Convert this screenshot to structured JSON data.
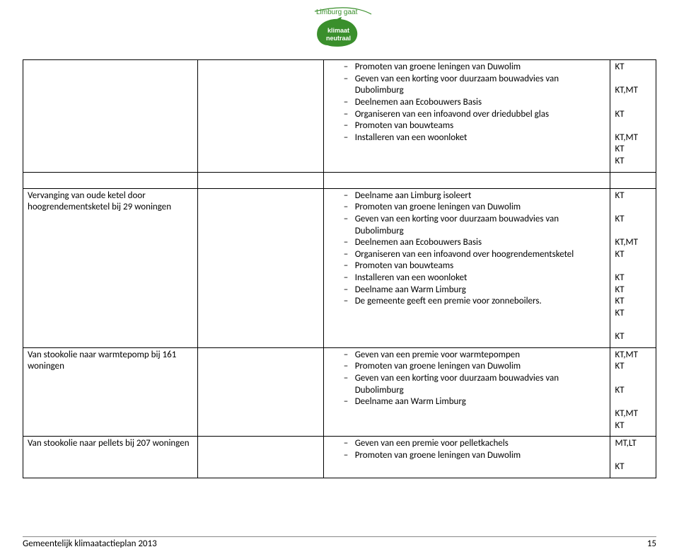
{
  "logo": {
    "line1": "Limburg gaat",
    "line2": "klimaat",
    "line3": "neutraal",
    "leaf_color": "#3a8f2c",
    "text_color": "#3a8f2c"
  },
  "columns": [
    "c0",
    "c1",
    "c2",
    "c3"
  ],
  "rows": [
    {
      "col0_text": "",
      "col1_text": "",
      "col2_items": [
        {
          "text": "Promoten van groene leningen van Duwolim",
          "lines": 2
        },
        {
          "text": "Geven van een korting voor duurzaam bouwadvies van Dubolimburg",
          "lines": 2
        },
        {
          "text": "Deelnemen aan Ecobouwers Basis",
          "lines": 1
        },
        {
          "text": "Organiseren van een infoavond over driedubbel glas",
          "lines": 2
        },
        {
          "text": "Promoten van bouwteams",
          "lines": 1
        },
        {
          "text": "Installeren van een woonloket",
          "lines": 1
        }
      ],
      "codes": [
        "KT",
        "",
        "KT,MT",
        "",
        "KT",
        "",
        "KT,MT",
        "KT",
        "KT"
      ]
    },
    {
      "spacer": true,
      "col0_text": "",
      "col1_text": "",
      "col2_items": [],
      "codes": []
    },
    {
      "col0_text": "Vervanging van oude ketel door hoogrendementsketel bij 29 woningen",
      "col1_text": "",
      "col2_items": [
        {
          "text": "Deelname aan Limburg isoleert",
          "lines": 1
        },
        {
          "text": "Promoten van groene leningen van Duwolim",
          "lines": 2
        },
        {
          "text": "Geven van een korting voor duurzaam bouwadvies van Dubolimburg",
          "lines": 2
        },
        {
          "text": "Deelnemen aan Ecobouwers Basis",
          "lines": 1
        },
        {
          "text": "Organiseren van een infoavond over hoogrendementsketel",
          "lines": 2
        },
        {
          "text": "Promoten van bouwteams",
          "lines": 1
        },
        {
          "text": "Installeren van een woonloket",
          "lines": 1
        },
        {
          "text": "Deelname aan Warm Limburg",
          "lines": 1
        },
        {
          "text": "De gemeente geeft een premie voor zonneboilers.",
          "lines": 2
        }
      ],
      "codes": [
        "KT",
        "",
        "KT",
        "",
        "KT,MT",
        "KT",
        "",
        "KT",
        "KT",
        "KT",
        "KT",
        "",
        "KT"
      ]
    },
    {
      "col0_text": "Van stookolie naar warmtepomp bij 161 woningen",
      "col1_text": "",
      "col2_items": [
        {
          "text": "Geven van een premie voor warmtepompen",
          "lines": 2
        },
        {
          "text": "Promoten van groene leningen van Duwolim",
          "lines": 2
        },
        {
          "text": "Geven van een korting voor duurzaam bouwadvies van Dubolimburg",
          "lines": 2
        },
        {
          "text": "Deelname aan Warm Limburg",
          "lines": 1
        }
      ],
      "codes": [
        "KT,MT",
        "KT",
        "",
        "KT",
        "",
        "KT,MT",
        "KT"
      ]
    },
    {
      "col0_text": "Van stookolie naar pellets bij 207 woningen",
      "col1_text": "",
      "col2_items": [
        {
          "text": "Geven van een premie voor pelletkachels",
          "lines": 1
        },
        {
          "text": "Promoten van groene leningen van Duwolim",
          "lines": 2
        }
      ],
      "codes": [
        "MT,LT",
        "",
        "KT"
      ]
    }
  ],
  "footer": {
    "text": "Gemeentelijk klimaatactieplan 2013",
    "page": "15"
  }
}
